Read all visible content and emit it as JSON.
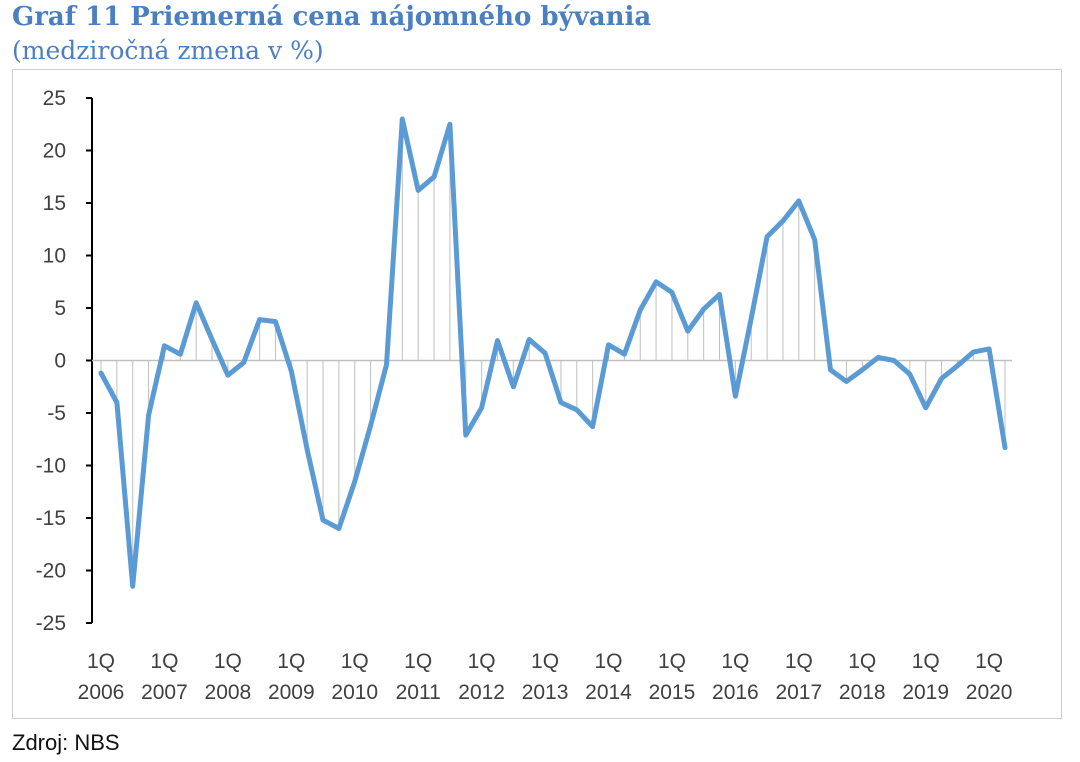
{
  "header": {
    "title": "Graf 11 Priemerná cena nájomného bývania",
    "subtitle": "(medziročná zmena v %)"
  },
  "source": "Zdroj: NBS",
  "colors": {
    "title": "#4a7fc1",
    "line": "#5b9bd5",
    "droplines": "#bfbfbf",
    "axis": "#000000"
  },
  "chart_data": {
    "type": "line",
    "title": "",
    "xlabel": "",
    "ylabel": "",
    "ylim": [
      -25,
      25
    ],
    "y_ticks": [
      25,
      20,
      15,
      10,
      5,
      0,
      -5,
      -10,
      -15,
      -20,
      -25
    ],
    "x_tick_labels": [
      {
        "q": "1Q",
        "year": "2006"
      },
      {
        "q": "1Q",
        "year": "2007"
      },
      {
        "q": "1Q",
        "year": "2008"
      },
      {
        "q": "1Q",
        "year": "2009"
      },
      {
        "q": "1Q",
        "year": "2010"
      },
      {
        "q": "1Q",
        "year": "2011"
      },
      {
        "q": "1Q",
        "year": "2012"
      },
      {
        "q": "1Q",
        "year": "2013"
      },
      {
        "q": "1Q",
        "year": "2014"
      },
      {
        "q": "1Q",
        "year": "2015"
      },
      {
        "q": "1Q",
        "year": "2016"
      },
      {
        "q": "1Q",
        "year": "2017"
      },
      {
        "q": "1Q",
        "year": "2018"
      },
      {
        "q": "1Q",
        "year": "2019"
      },
      {
        "q": "1Q",
        "year": "2020"
      }
    ],
    "grid": false,
    "drop_lines": true,
    "series": [
      {
        "values": [
          -1.2,
          -4.0,
          -21.5,
          -5.2,
          1.4,
          0.6,
          5.5,
          2.0,
          -1.4,
          -0.2,
          3.9,
          3.7,
          -1.0,
          -8.5,
          -15.2,
          -16.0,
          -11.5,
          -6.2,
          -0.4,
          23.0,
          16.2,
          17.5,
          22.5,
          -7.1,
          -4.5,
          1.9,
          -2.5,
          2.0,
          0.7,
          -4.0,
          -4.7,
          -6.3,
          1.5,
          0.6,
          4.8,
          7.5,
          6.5,
          2.8,
          4.9,
          6.3,
          -3.4,
          4.0,
          11.8,
          13.3,
          15.2,
          11.5,
          -0.9,
          -2.0,
          -0.9,
          0.3,
          0.0,
          -1.3,
          -4.5,
          -1.7,
          -0.5,
          0.8,
          1.1,
          -8.3
        ]
      }
    ]
  }
}
